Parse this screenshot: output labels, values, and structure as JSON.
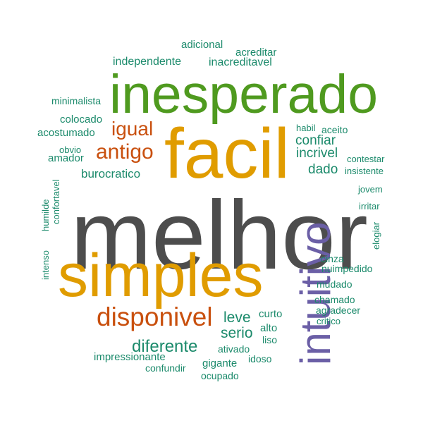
{
  "palette": {
    "gray": "#4d4d4d",
    "green": "#4f9a1f",
    "orange": "#e09c00",
    "rust": "#c9500e",
    "purple": "#6b5fa6",
    "teal": "#1b8a6b"
  },
  "words": [
    {
      "text": "melhor",
      "color": "gray"
    },
    {
      "text": "inesperado",
      "color": "green"
    },
    {
      "text": "facil",
      "color": "orange"
    },
    {
      "text": "simples",
      "color": "orange"
    },
    {
      "text": "intuitivo",
      "color": "purple"
    },
    {
      "text": "disponivel",
      "color": "rust"
    },
    {
      "text": "antigo",
      "color": "rust"
    },
    {
      "text": "igual",
      "color": "rust"
    },
    {
      "text": "diferente",
      "color": "teal"
    },
    {
      "text": "leve",
      "color": "teal"
    },
    {
      "text": "serio",
      "color": "teal"
    },
    {
      "text": "confiar",
      "color": "teal"
    },
    {
      "text": "incrivel",
      "color": "teal"
    },
    {
      "text": "dado",
      "color": "teal"
    },
    {
      "text": "burocratico",
      "color": "teal"
    },
    {
      "text": "independente",
      "color": "teal"
    },
    {
      "text": "inacreditavel",
      "color": "teal"
    },
    {
      "text": "adicional",
      "color": "teal"
    },
    {
      "text": "acreditar",
      "color": "teal"
    },
    {
      "text": "minimalista",
      "color": "teal"
    },
    {
      "text": "colocado",
      "color": "teal"
    },
    {
      "text": "acostumado",
      "color": "teal"
    },
    {
      "text": "obvio",
      "color": "teal"
    },
    {
      "text": "amador",
      "color": "teal"
    },
    {
      "text": "habil",
      "color": "teal"
    },
    {
      "text": "aceito",
      "color": "teal"
    },
    {
      "text": "contestar",
      "color": "teal"
    },
    {
      "text": "insistente",
      "color": "teal"
    },
    {
      "text": "jovem",
      "color": "teal"
    },
    {
      "text": "irritar",
      "color": "teal"
    },
    {
      "text": "elogiar",
      "color": "teal"
    },
    {
      "text": "humilde",
      "color": "teal"
    },
    {
      "text": "confortavel",
      "color": "teal"
    },
    {
      "text": "intenso",
      "color": "teal"
    },
    {
      "text": "cinza",
      "color": "teal"
    },
    {
      "text": "nuimpedido",
      "color": "teal"
    },
    {
      "text": "mudado",
      "color": "teal"
    },
    {
      "text": "chamado",
      "color": "teal"
    },
    {
      "text": "agradecer",
      "color": "teal"
    },
    {
      "text": "critico",
      "color": "teal"
    },
    {
      "text": "curto",
      "color": "teal"
    },
    {
      "text": "alto",
      "color": "teal"
    },
    {
      "text": "liso",
      "color": "teal"
    },
    {
      "text": "ativado",
      "color": "teal"
    },
    {
      "text": "idoso",
      "color": "teal"
    },
    {
      "text": "impressionante",
      "color": "teal"
    },
    {
      "text": "gigante",
      "color": "teal"
    },
    {
      "text": "confundir",
      "color": "teal"
    },
    {
      "text": "ocupado",
      "color": "teal"
    }
  ]
}
